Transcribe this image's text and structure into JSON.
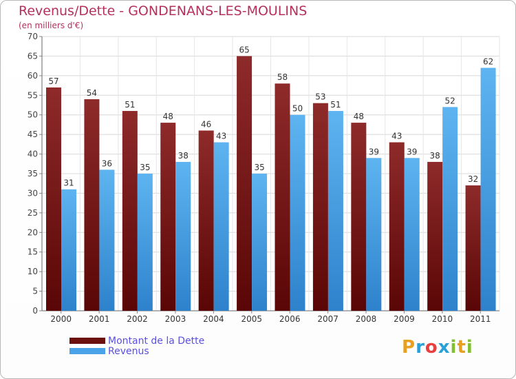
{
  "header": {
    "title": "Revenus/Dette - GONDENANS-LES-MOULINS",
    "subtitle": "(en milliers d'€)"
  },
  "chart_data": {
    "type": "bar",
    "categories": [
      "2000",
      "2001",
      "2002",
      "2003",
      "2004",
      "2005",
      "2006",
      "2007",
      "2008",
      "2009",
      "2010",
      "2011"
    ],
    "series": [
      {
        "name": "Montant de la Dette",
        "values": [
          57,
          54,
          51,
          48,
          46,
          65,
          58,
          53,
          48,
          43,
          38,
          32
        ],
        "color": "#7a1010"
      },
      {
        "name": "Revenus",
        "values": [
          31,
          36,
          35,
          38,
          43,
          35,
          50,
          51,
          39,
          39,
          52,
          62
        ],
        "color": "#4aa3e8"
      }
    ],
    "ylim": [
      0,
      70
    ],
    "yticks": [
      0,
      5,
      10,
      15,
      20,
      25,
      30,
      35,
      40,
      45,
      50,
      55,
      60,
      65,
      70
    ],
    "grid": true,
    "legend_position": "bottom-left"
  },
  "legend": [
    {
      "label": "Montant de la Dette",
      "color": "#6b0f0f"
    },
    {
      "label": "Revenus",
      "color": "#4aa3e8"
    }
  ],
  "logo": {
    "letters": [
      "P",
      "r",
      "o",
      "x",
      "i",
      "t",
      "i"
    ],
    "colors": [
      "#e8a020",
      "#2aa0d8",
      "#e84040",
      "#2aa0d8",
      "#80c030",
      "#e8a020",
      "#80c030"
    ]
  }
}
